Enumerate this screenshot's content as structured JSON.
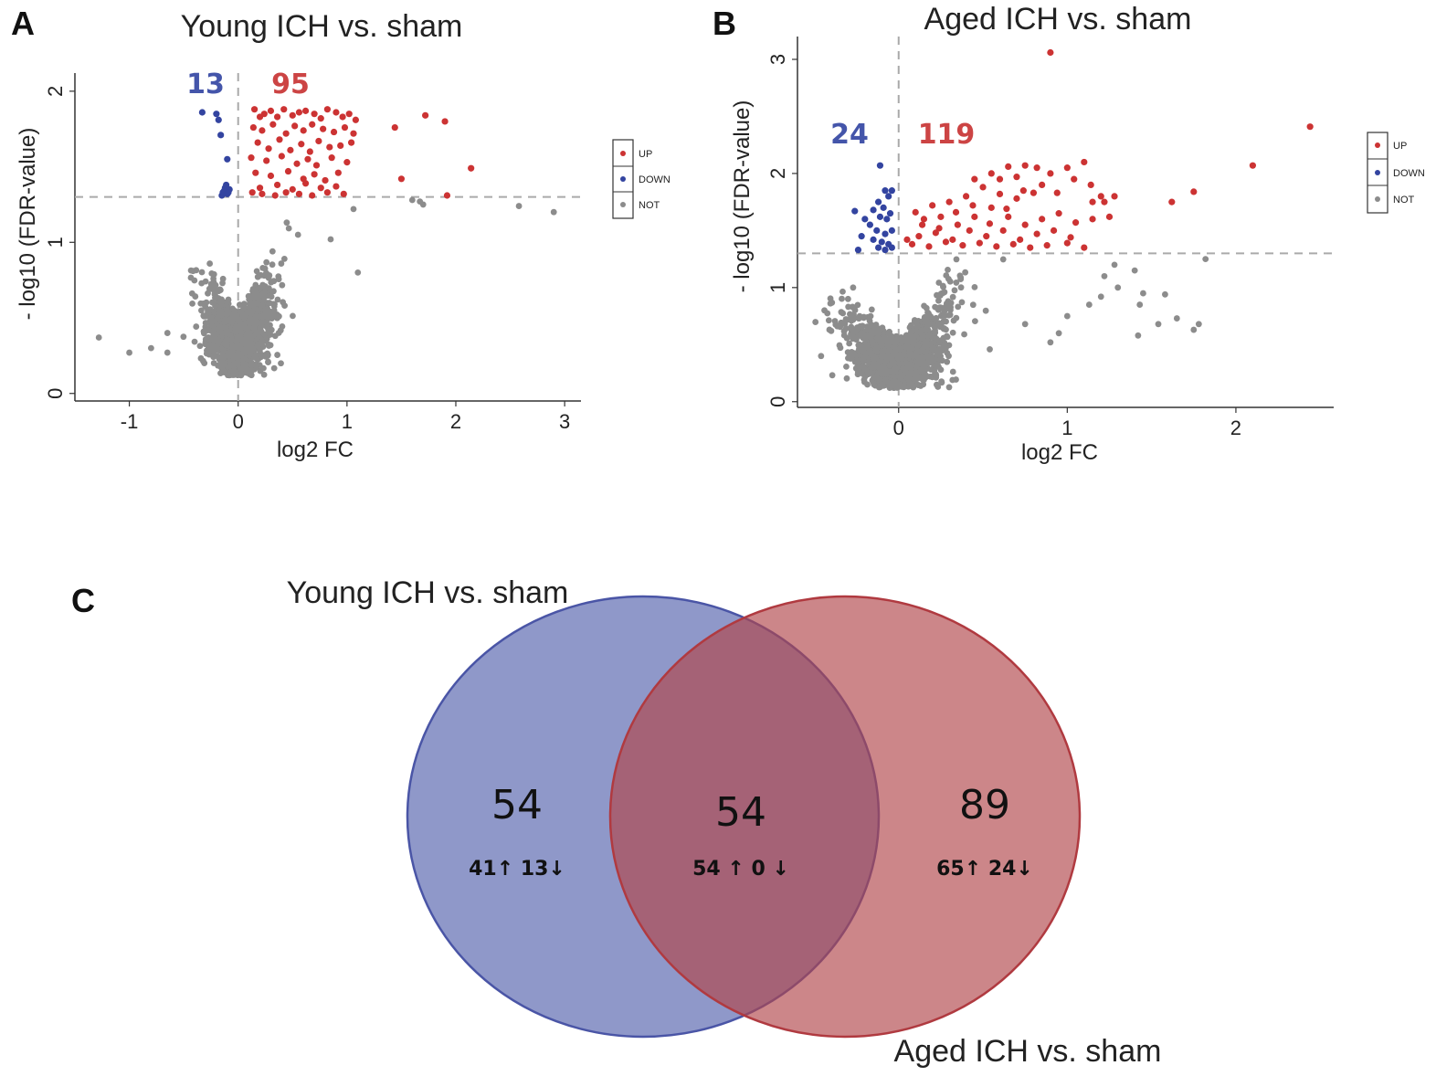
{
  "panels": {
    "a": {
      "letter": "A"
    },
    "b": {
      "letter": "B"
    },
    "c": {
      "letter": "C"
    }
  },
  "chart_data": [
    {
      "id": "volcano-young",
      "type": "scatter",
      "title": "Young ICH vs. sham",
      "xlabel": "log2 FC",
      "ylabel": "- log10 (FDR-value)",
      "xlim": [
        -1.5,
        3.15
      ],
      "ylim": [
        -0.05,
        2.12
      ],
      "xticks": [
        -1,
        0,
        1,
        2,
        3
      ],
      "yticks": [
        0,
        1,
        2
      ],
      "threshold_y": 1.3,
      "counts": {
        "down": "13",
        "up": "95"
      },
      "legend": [
        "UP",
        "DOWN",
        "NOT"
      ],
      "colors": {
        "up": "#cc3333",
        "down": "#3344a0",
        "not": "#8c8c8c",
        "down_count": "#4455aa",
        "up_count": "#cc4444"
      },
      "seed": 11,
      "series": [
        {
          "name": "UP",
          "points": [
            [
              0.15,
              1.88
            ],
            [
              0.2,
              1.83
            ],
            [
              0.24,
              1.85
            ],
            [
              0.3,
              1.87
            ],
            [
              0.36,
              1.83
            ],
            [
              0.42,
              1.88
            ],
            [
              0.5,
              1.84
            ],
            [
              0.56,
              1.86
            ],
            [
              0.62,
              1.87
            ],
            [
              0.7,
              1.85
            ],
            [
              0.76,
              1.82
            ],
            [
              0.82,
              1.88
            ],
            [
              0.9,
              1.86
            ],
            [
              0.96,
              1.83
            ],
            [
              1.02,
              1.85
            ],
            [
              1.08,
              1.81
            ],
            [
              0.14,
              1.76
            ],
            [
              0.22,
              1.74
            ],
            [
              0.32,
              1.78
            ],
            [
              0.44,
              1.72
            ],
            [
              0.52,
              1.77
            ],
            [
              0.6,
              1.74
            ],
            [
              0.68,
              1.78
            ],
            [
              0.78,
              1.75
            ],
            [
              0.88,
              1.73
            ],
            [
              0.98,
              1.76
            ],
            [
              1.06,
              1.72
            ],
            [
              0.18,
              1.66
            ],
            [
              0.28,
              1.62
            ],
            [
              0.38,
              1.68
            ],
            [
              0.48,
              1.61
            ],
            [
              0.58,
              1.65
            ],
            [
              0.66,
              1.6
            ],
            [
              0.74,
              1.67
            ],
            [
              0.84,
              1.63
            ],
            [
              0.94,
              1.64
            ],
            [
              1.04,
              1.66
            ],
            [
              0.12,
              1.56
            ],
            [
              0.26,
              1.54
            ],
            [
              0.4,
              1.57
            ],
            [
              0.54,
              1.52
            ],
            [
              0.64,
              1.55
            ],
            [
              0.72,
              1.51
            ],
            [
              0.86,
              1.56
            ],
            [
              1.0,
              1.53
            ],
            [
              0.16,
              1.46
            ],
            [
              0.3,
              1.44
            ],
            [
              0.46,
              1.47
            ],
            [
              0.6,
              1.42
            ],
            [
              0.7,
              1.45
            ],
            [
              0.8,
              1.41
            ],
            [
              0.92,
              1.46
            ],
            [
              0.2,
              1.36
            ],
            [
              0.36,
              1.38
            ],
            [
              0.5,
              1.35
            ],
            [
              0.62,
              1.39
            ],
            [
              0.76,
              1.36
            ],
            [
              0.9,
              1.37
            ],
            [
              0.13,
              1.33
            ],
            [
              0.22,
              1.32
            ],
            [
              0.34,
              1.31
            ],
            [
              0.44,
              1.33
            ],
            [
              0.56,
              1.32
            ],
            [
              0.68,
              1.31
            ],
            [
              0.82,
              1.33
            ],
            [
              0.97,
              1.32
            ],
            [
              1.44,
              1.76
            ],
            [
              1.72,
              1.84
            ],
            [
              1.9,
              1.8
            ],
            [
              1.5,
              1.42
            ],
            [
              2.14,
              1.49
            ],
            [
              1.92,
              1.31
            ]
          ]
        },
        {
          "name": "DOWN",
          "points": [
            [
              -0.33,
              1.86
            ],
            [
              -0.2,
              1.85
            ],
            [
              -0.18,
              1.81
            ],
            [
              -0.16,
              1.71
            ],
            [
              -0.1,
              1.55
            ],
            [
              -0.12,
              1.36
            ],
            [
              -0.14,
              1.33
            ],
            [
              -0.1,
              1.32
            ],
            [
              -0.08,
              1.35
            ],
            [
              -0.15,
              1.31
            ],
            [
              -0.11,
              1.38
            ],
            [
              -0.13,
              1.34
            ],
            [
              -0.09,
              1.33
            ]
          ]
        },
        {
          "name": "NOT",
          "scatter": {
            "count": 1500,
            "right_gain": 0.55,
            "left_gain": 0.45,
            "max": 1.28
          },
          "points": [
            [
              -1.28,
              0.37
            ],
            [
              -1.0,
              0.27
            ],
            [
              -0.8,
              0.3
            ],
            [
              -0.65,
              0.27
            ],
            [
              -0.65,
              0.4
            ],
            [
              1.06,
              1.22
            ],
            [
              1.6,
              1.28
            ],
            [
              1.7,
              1.25
            ],
            [
              1.67,
              1.27
            ],
            [
              2.58,
              1.24
            ],
            [
              2.9,
              1.2
            ],
            [
              1.1,
              0.8
            ],
            [
              0.55,
              1.05
            ],
            [
              0.85,
              1.02
            ]
          ]
        }
      ]
    },
    {
      "id": "volcano-aged",
      "type": "scatter",
      "title": "Aged ICH vs. sham",
      "xlabel": "log2 FC",
      "ylabel": "- log10 (FDR-value)",
      "xlim": [
        -0.6,
        2.58
      ],
      "ylim": [
        -0.05,
        3.2
      ],
      "xticks": [
        0,
        1,
        2
      ],
      "yticks": [
        0,
        1,
        2,
        3
      ],
      "threshold_y": 1.3,
      "counts": {
        "down": "24",
        "up": "119"
      },
      "legend": [
        "UP",
        "DOWN",
        "NOT"
      ],
      "colors": {
        "up": "#cc3333",
        "down": "#3344a0",
        "not": "#8c8c8c",
        "down_count": "#4455aa",
        "up_count": "#cc4444"
      },
      "seed": 29,
      "series": [
        {
          "name": "UP",
          "points": [
            [
              0.9,
              3.06
            ],
            [
              2.44,
              2.41
            ],
            [
              2.1,
              2.07
            ],
            [
              1.75,
              1.84
            ],
            [
              1.62,
              1.75
            ],
            [
              1.28,
              1.8
            ],
            [
              1.25,
              1.62
            ],
            [
              1.22,
              1.75
            ],
            [
              1.1,
              2.1
            ],
            [
              1.0,
              2.05
            ],
            [
              1.15,
              1.75
            ],
            [
              0.75,
              2.07
            ],
            [
              0.65,
              2.06
            ],
            [
              0.55,
              2.0
            ],
            [
              0.45,
              1.95
            ],
            [
              0.9,
              2.0
            ],
            [
              0.85,
              1.9
            ],
            [
              0.8,
              1.83
            ],
            [
              0.7,
              1.78
            ],
            [
              0.6,
              1.82
            ],
            [
              0.5,
              1.88
            ],
            [
              0.4,
              1.8
            ],
            [
              0.3,
              1.75
            ],
            [
              0.2,
              1.72
            ],
            [
              0.1,
              1.66
            ],
            [
              0.15,
              1.6
            ],
            [
              0.25,
              1.62
            ],
            [
              0.35,
              1.55
            ],
            [
              0.45,
              1.62
            ],
            [
              0.55,
              1.7
            ],
            [
              0.65,
              1.62
            ],
            [
              0.75,
              1.55
            ],
            [
              0.85,
              1.6
            ],
            [
              0.95,
              1.65
            ],
            [
              1.05,
              1.57
            ],
            [
              1.15,
              1.6
            ],
            [
              0.12,
              1.45
            ],
            [
              0.22,
              1.48
            ],
            [
              0.32,
              1.42
            ],
            [
              0.42,
              1.5
            ],
            [
              0.52,
              1.45
            ],
            [
              0.62,
              1.5
            ],
            [
              0.72,
              1.42
            ],
            [
              0.82,
              1.47
            ],
            [
              0.92,
              1.5
            ],
            [
              1.02,
              1.44
            ],
            [
              0.08,
              1.38
            ],
            [
              0.18,
              1.36
            ],
            [
              0.28,
              1.4
            ],
            [
              0.38,
              1.37
            ],
            [
              0.48,
              1.39
            ],
            [
              0.58,
              1.36
            ],
            [
              0.68,
              1.38
            ],
            [
              0.78,
              1.35
            ],
            [
              0.88,
              1.37
            ],
            [
              1.0,
              1.39
            ],
            [
              1.1,
              1.35
            ],
            [
              0.05,
              1.42
            ],
            [
              0.14,
              1.55
            ],
            [
              0.24,
              1.52
            ],
            [
              0.34,
              1.66
            ],
            [
              0.44,
              1.72
            ],
            [
              0.54,
              1.56
            ],
            [
              0.64,
              1.69
            ],
            [
              0.74,
              1.85
            ],
            [
              0.94,
              1.83
            ],
            [
              1.04,
              1.95
            ],
            [
              1.14,
              1.9
            ],
            [
              0.82,
              2.05
            ],
            [
              0.6,
              1.95
            ],
            [
              0.7,
              1.97
            ],
            [
              1.2,
              1.8
            ]
          ]
        },
        {
          "name": "DOWN",
          "points": [
            [
              -0.11,
              2.07
            ],
            [
              -0.08,
              1.85
            ],
            [
              -0.04,
              1.85
            ],
            [
              -0.06,
              1.8
            ],
            [
              -0.12,
              1.75
            ],
            [
              -0.09,
              1.7
            ],
            [
              -0.15,
              1.68
            ],
            [
              -0.05,
              1.65
            ],
            [
              -0.26,
              1.67
            ],
            [
              -0.2,
              1.6
            ],
            [
              -0.11,
              1.62
            ],
            [
              -0.07,
              1.6
            ],
            [
              -0.17,
              1.55
            ],
            [
              -0.04,
              1.5
            ],
            [
              -0.13,
              1.5
            ],
            [
              -0.08,
              1.47
            ],
            [
              -0.22,
              1.45
            ],
            [
              -0.15,
              1.42
            ],
            [
              -0.1,
              1.4
            ],
            [
              -0.06,
              1.38
            ],
            [
              -0.24,
              1.33
            ],
            [
              -0.12,
              1.35
            ],
            [
              -0.08,
              1.33
            ],
            [
              -0.04,
              1.35
            ]
          ]
        },
        {
          "name": "NOT",
          "scatter": {
            "count": 1600,
            "right_gain": 0.75,
            "left_gain": 0.55,
            "max": 1.28
          },
          "points": [
            [
              -0.46,
              0.4
            ],
            [
              -0.4,
              0.62
            ],
            [
              -0.44,
              0.8
            ],
            [
              -0.27,
              1.0
            ],
            [
              -0.3,
              0.9
            ],
            [
              1.22,
              1.1
            ],
            [
              1.28,
              1.2
            ],
            [
              1.3,
              1.0
            ],
            [
              1.4,
              1.15
            ],
            [
              1.45,
              0.95
            ],
            [
              1.43,
              0.85
            ],
            [
              1.58,
              0.94
            ],
            [
              1.82,
              1.25
            ],
            [
              1.65,
              0.73
            ],
            [
              1.75,
              0.63
            ],
            [
              1.78,
              0.68
            ],
            [
              1.54,
              0.68
            ],
            [
              1.42,
              0.58
            ],
            [
              1.0,
              0.75
            ],
            [
              0.95,
              0.6
            ],
            [
              0.9,
              0.52
            ],
            [
              0.75,
              0.68
            ],
            [
              1.13,
              0.85
            ],
            [
              1.2,
              0.92
            ]
          ]
        }
      ]
    }
  ],
  "venn": {
    "young_label": "Young ICH vs. sham",
    "aged_label": "Aged ICH vs. sham",
    "left_only": {
      "total": "54",
      "detail": "41↑ 13↓"
    },
    "intersection": {
      "total": "54",
      "detail": "54 ↑ 0 ↓"
    },
    "right_only": {
      "total": "89",
      "detail": "65↑ 24↓"
    },
    "colors": {
      "young_fill": "#5a67b0",
      "young_stroke": "#4a55a6",
      "aged_fill": "#b0454a",
      "aged_stroke": "#b03a40"
    }
  }
}
